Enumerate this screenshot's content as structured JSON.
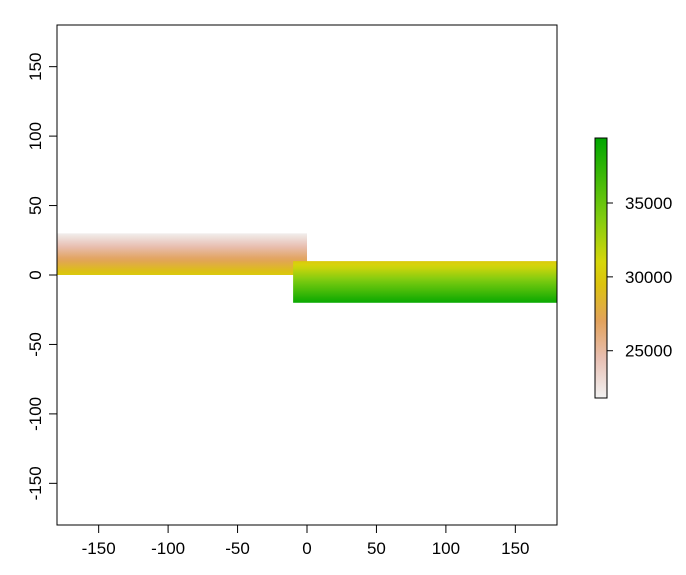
{
  "chart_data": {
    "type": "heatmap",
    "title": "",
    "xlabel": "",
    "ylabel": "",
    "xlim": [
      -180,
      180
    ],
    "ylim": [
      -180,
      180
    ],
    "x_ticks": [
      -150,
      -100,
      -50,
      0,
      50,
      100,
      150
    ],
    "x_tick_labels": [
      "-150",
      "-100",
      "-50",
      "0",
      "50",
      "100",
      "150"
    ],
    "y_ticks": [
      -150,
      -100,
      -50,
      0,
      50,
      100,
      150
    ],
    "y_tick_labels": [
      "-150",
      "-100",
      "-50",
      "0",
      "50",
      "100",
      "150"
    ],
    "grid": false,
    "regions": [
      {
        "x_range": [
          -180,
          0
        ],
        "y_range": [
          0,
          30
        ],
        "gradient": [
          {
            "y": 0,
            "value": 30000
          },
          {
            "y": 30,
            "value": 22000
          }
        ]
      },
      {
        "x_range": [
          -10,
          180
        ],
        "y_range": [
          -20,
          10
        ],
        "gradient": [
          {
            "y": 10,
            "value": 30000
          },
          {
            "y": -20,
            "value": 39000
          }
        ]
      }
    ],
    "colorbar": {
      "range": [
        21800,
        39400
      ],
      "ticks": [
        25000,
        30000,
        35000
      ],
      "tick_labels": [
        "25000",
        "30000",
        "35000"
      ],
      "position": "right",
      "stops": [
        {
          "value": 21800,
          "color": "#f2f2f2"
        },
        {
          "value": 24500,
          "color": "#e8bfb2"
        },
        {
          "value": 27000,
          "color": "#e2a25c"
        },
        {
          "value": 29500,
          "color": "#dcc30e"
        },
        {
          "value": 31000,
          "color": "#d6d60a"
        },
        {
          "value": 34000,
          "color": "#80cc10"
        },
        {
          "value": 39400,
          "color": "#00a600"
        }
      ]
    }
  }
}
